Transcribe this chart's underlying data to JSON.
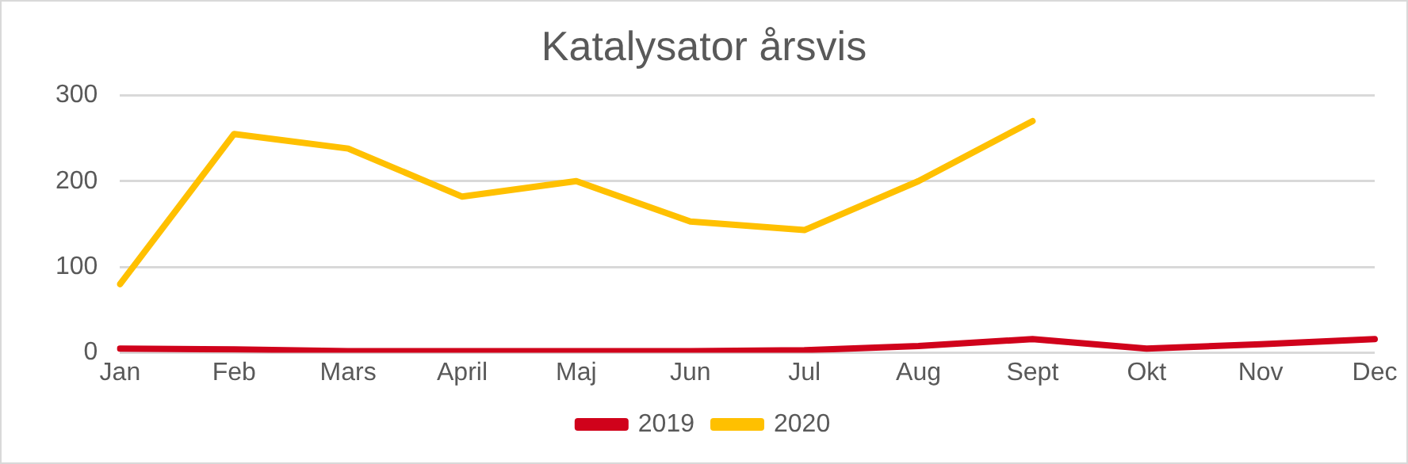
{
  "chart_data": {
    "type": "line",
    "title": "Katalysator årsvis",
    "categories": [
      "Jan",
      "Feb",
      "Mars",
      "April",
      "Maj",
      "Jun",
      "Jul",
      "Aug",
      "Sept",
      "Okt",
      "Nov",
      "Dec"
    ],
    "series": [
      {
        "name": "2019",
        "color": "#d0021b",
        "values": [
          5,
          4,
          2,
          2,
          2,
          2,
          3,
          8,
          16,
          5,
          10,
          16
        ]
      },
      {
        "name": "2020",
        "color": "#ffc000",
        "values": [
          80,
          255,
          238,
          182,
          200,
          153,
          143,
          200,
          270,
          null,
          null,
          null
        ]
      }
    ],
    "ylim": [
      0,
      300
    ],
    "yticks": [
      0,
      100,
      200,
      300
    ],
    "grid": "y",
    "legend": "bottom",
    "marker": "none",
    "line_style": "solid"
  }
}
